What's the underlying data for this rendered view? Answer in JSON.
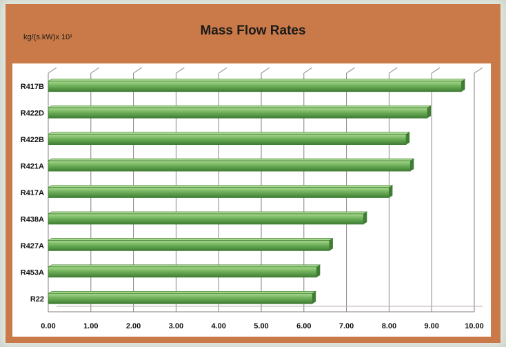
{
  "chart_data": {
    "type": "bar",
    "orientation": "horizontal",
    "title": "Mass Flow Rates",
    "unit_label": "kg/(s.kW)x 10¹",
    "categories": [
      "R417B",
      "R422D",
      "R422B",
      "R421A",
      "R417A",
      "R438A",
      "R427A",
      "R453A",
      "R22"
    ],
    "values": [
      9.7,
      8.9,
      8.4,
      8.5,
      8.0,
      7.4,
      6.6,
      6.3,
      6.2
    ],
    "xlim": [
      0,
      10
    ],
    "x_ticks": [
      "0.00",
      "1.00",
      "2.00",
      "3.00",
      "4.00",
      "5.00",
      "6.00",
      "7.00",
      "8.00",
      "9.00",
      "10.00"
    ],
    "grid": true,
    "colors": {
      "bar": "#6fb05a",
      "bar_dark": "#3f7d34",
      "bar_light": "#a9d98f",
      "frame": "#c97a48"
    }
  }
}
